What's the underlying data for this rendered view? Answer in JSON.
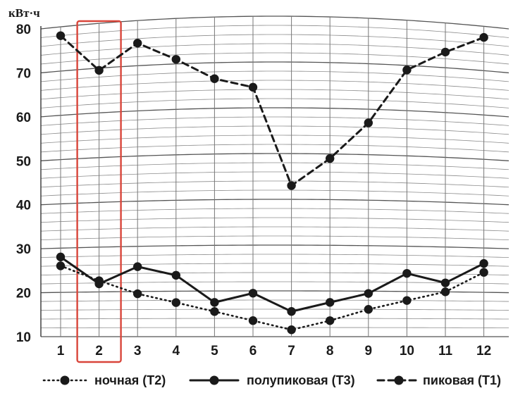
{
  "chart_data": {
    "type": "line",
    "ylabel": "кВт·ч",
    "xlabel": "",
    "title": "",
    "categories": [
      "1",
      "2",
      "3",
      "4",
      "5",
      "6",
      "7",
      "8",
      "9",
      "10",
      "11",
      "12"
    ],
    "ylim": [
      10,
      80
    ],
    "yticks": [
      10,
      20,
      30,
      40,
      50,
      60,
      70,
      80
    ],
    "grid": true,
    "highlight_category": "2",
    "highlight_color": "#d9453a",
    "legend_position": "bottom",
    "series": [
      {
        "name": "ночная (Т2)",
        "style": "dotted",
        "values": [
          26,
          22.5,
          19.5,
          17.5,
          15.5,
          13.5,
          11.5,
          13.5,
          16,
          18,
          20,
          24.5
        ]
      },
      {
        "name": "полупиковая (Т3)",
        "style": "solid",
        "values": [
          28,
          21.8,
          25.5,
          23.5,
          17.5,
          19.5,
          15.5,
          17.5,
          19.5,
          24,
          22,
          26.5
        ]
      },
      {
        "name": "пиковая (Т1)",
        "style": "dashed",
        "values": [
          78,
          69.5,
          75,
          71,
          66.5,
          64.5,
          43,
          49,
          57,
          69,
          73.5,
          77.5
        ]
      }
    ]
  }
}
